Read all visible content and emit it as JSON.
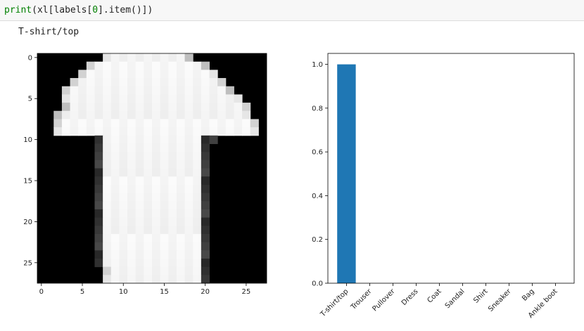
{
  "cell": {
    "code_parts": [
      "print",
      "(xl[labels[",
      "0",
      "].item()])"
    ]
  },
  "output": {
    "text": "T-shirt/top"
  },
  "image_plot": {
    "x_ticks": [
      "0",
      "5",
      "10",
      "15",
      "20",
      "25"
    ],
    "y_ticks": [
      "0",
      "5",
      "10",
      "15",
      "20",
      "25"
    ]
  },
  "chart_data": [
    {
      "type": "heatmap",
      "title": "",
      "xlabel": "",
      "ylabel": "",
      "xlim": [
        -0.5,
        27.5
      ],
      "ylim": [
        27.5,
        -0.5
      ],
      "colormap": "gray",
      "x_ticks": [
        0,
        5,
        10,
        15,
        20,
        25
      ],
      "y_ticks": [
        0,
        5,
        10,
        15,
        20,
        25
      ]
    },
    {
      "type": "bar",
      "title": "",
      "xlabel": "",
      "ylabel": "",
      "categories": [
        "T-shirt/top",
        "Trouser",
        "Pullover",
        "Dress",
        "Coat",
        "Sandal",
        "Shirt",
        "Sneaker",
        "Bag",
        "Ankle boot"
      ],
      "values": [
        1.0,
        0,
        0,
        0,
        0,
        0,
        0,
        0,
        0,
        0
      ],
      "ylim": [
        0,
        1.05
      ],
      "y_ticks": [
        0.0,
        0.2,
        0.4,
        0.6,
        0.8,
        1.0
      ],
      "y_tick_labels": [
        "0.0",
        "0.2",
        "0.4",
        "0.6",
        "0.8",
        "1.0"
      ],
      "bar_color": "#1f77b4",
      "grid": false
    }
  ]
}
